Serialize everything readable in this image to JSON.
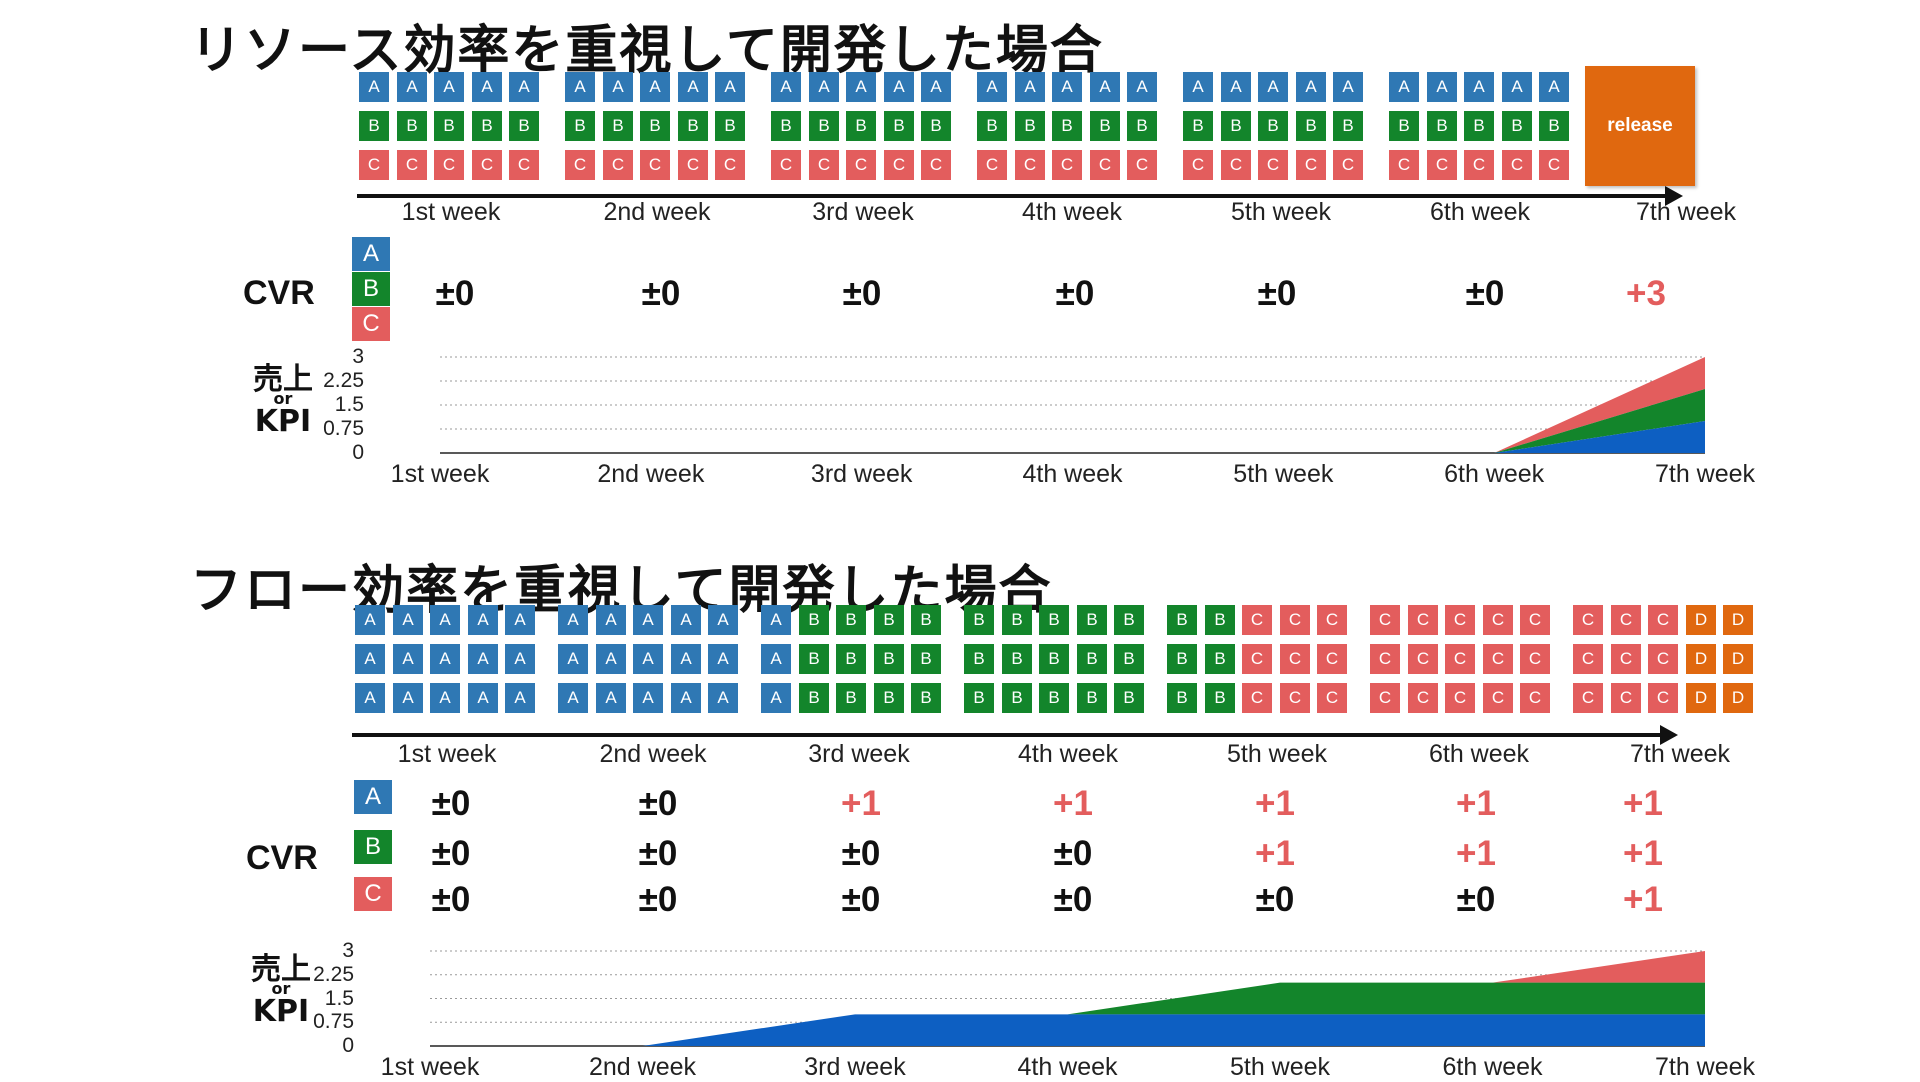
{
  "section1": {
    "title": "リソース効率を重視して開発した場合",
    "release_label": "release",
    "weeks": [
      "1st week",
      "2nd week",
      "3rd week",
      "4th week",
      "5th week",
      "6th week",
      "7th week"
    ],
    "cvr_label": "CVR",
    "legend": [
      "A",
      "B",
      "C"
    ],
    "cvr_values": [
      "±0",
      "±0",
      "±0",
      "±0",
      "±0",
      "±0",
      "+3"
    ],
    "kpi_label": {
      "top": "売上",
      "mid": "or",
      "bottom": "KPI"
    },
    "y_ticks": [
      "3",
      "2.25",
      "1.5",
      "0.75",
      "0"
    ]
  },
  "section2": {
    "title": "フロー効率を重視して開発した場合",
    "weeks": [
      "1st week",
      "2nd week",
      "3rd week",
      "4th week",
      "5th week",
      "6th week",
      "7th week"
    ],
    "cvr_label": "CVR",
    "legend": [
      "A",
      "B",
      "C"
    ],
    "cvr_rows": [
      [
        "±0",
        "±0",
        "+1",
        "+1",
        "+1",
        "+1",
        "+1"
      ],
      [
        "±0",
        "±0",
        "±0",
        "±0",
        "+1",
        "+1",
        "+1"
      ],
      [
        "±0",
        "±0",
        "±0",
        "±0",
        "±0",
        "±0",
        "+1"
      ]
    ],
    "kpi_label": {
      "top": "売上",
      "mid": "or",
      "bottom": "KPI"
    },
    "y_ticks": [
      "3",
      "2.25",
      "1.5",
      "0.75",
      "0"
    ]
  },
  "colors": {
    "A": "#2f78b4",
    "B": "#13852b",
    "C": "#e35d5d",
    "D": "#e0680f",
    "series_A": "#0d5fc2",
    "series_B": "#13852b",
    "series_C": "#e35d5d"
  },
  "chart_data": [
    {
      "type": "area",
      "stacked": true,
      "categories": [
        "1st week",
        "2nd week",
        "3rd week",
        "4th week",
        "5th week",
        "6th week",
        "7th week"
      ],
      "ylim": [
        0,
        3
      ],
      "y_ticks": [
        0,
        0.75,
        1.5,
        2.25,
        3
      ],
      "grid": true,
      "series": [
        {
          "values": [
            0,
            0,
            0,
            0,
            0,
            0,
            1
          ]
        },
        {
          "values": [
            0,
            0,
            0,
            0,
            0,
            0,
            1
          ]
        },
        {
          "values": [
            0,
            0,
            0,
            0,
            0,
            0,
            1
          ]
        }
      ]
    },
    {
      "type": "area",
      "stacked": true,
      "categories": [
        "1st week",
        "2nd week",
        "3rd week",
        "4th week",
        "5th week",
        "6th week",
        "7th week"
      ],
      "ylim": [
        0,
        3
      ],
      "y_ticks": [
        0,
        0.75,
        1.5,
        2.25,
        3
      ],
      "grid": true,
      "series": [
        {
          "values": [
            0,
            0,
            1,
            1,
            1,
            1,
            1
          ]
        },
        {
          "values": [
            0,
            0,
            0,
            0,
            1,
            1,
            1
          ]
        },
        {
          "values": [
            0,
            0,
            0,
            0,
            0,
            0,
            1
          ]
        }
      ]
    }
  ]
}
